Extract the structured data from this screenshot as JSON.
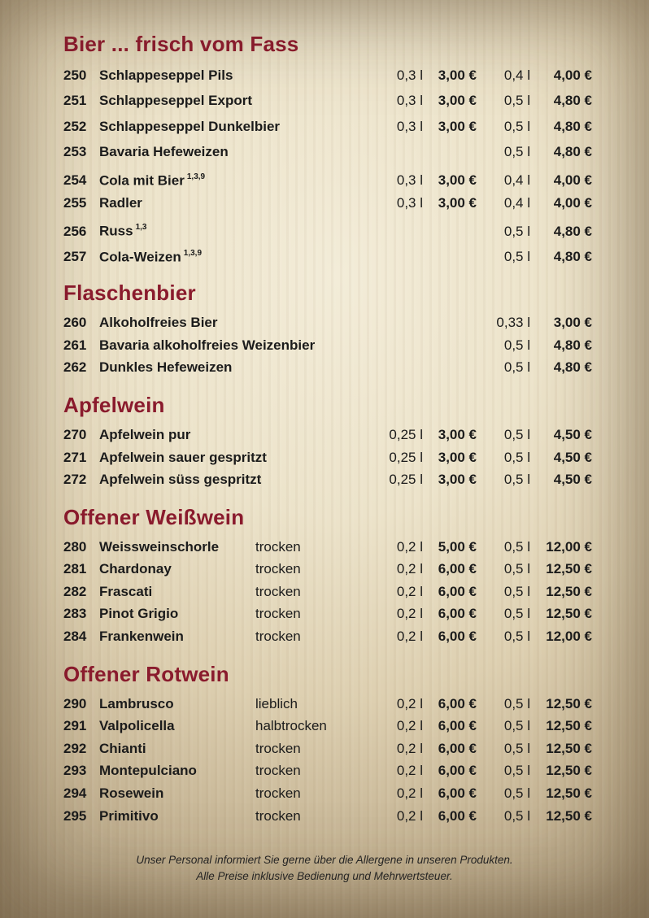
{
  "colors": {
    "heading": "#8a1b2d",
    "text": "#1b1b1b",
    "parchment_light": "#f3ecd8",
    "parchment_dark": "#ac9b7d"
  },
  "menu": {
    "sections": [
      {
        "title": "Bier ... frisch vom Fass",
        "style": "beer",
        "rows": [
          {
            "num": "250",
            "name": "Schlappeseppel Pils",
            "sup": "",
            "attr": "",
            "size1": "0,3 l",
            "price1": "3,00 €",
            "size2": "0,4 l",
            "price2": "4,00 €"
          },
          {
            "num": "251",
            "name": "Schlappeseppel Export",
            "sup": "",
            "attr": "",
            "size1": "0,3 l",
            "price1": "3,00 €",
            "size2": "0,5 l",
            "price2": "4,80 €"
          },
          {
            "num": "252",
            "name": "Schlappeseppel Dunkelbier",
            "sup": "",
            "attr": "",
            "size1": "0,3 l",
            "price1": "3,00 €",
            "size2": "0,5 l",
            "price2": "4,80 €"
          },
          {
            "num": "253",
            "name": "Bavaria Hefeweizen",
            "sup": "",
            "attr": "",
            "size1": "",
            "price1": "",
            "size2": "0,5 l",
            "price2": "4,80 €"
          },
          {
            "num": "254",
            "name": "Cola mit Bier",
            "sup": "1,3,9",
            "attr": "",
            "size1": "0,3 l",
            "price1": "3,00 €",
            "size2": "0,4 l",
            "price2": "4,00 €"
          },
          {
            "num": "255",
            "name": "Radler",
            "sup": "",
            "attr": "",
            "size1": "0,3 l",
            "price1": "3,00 €",
            "size2": "0,4 l",
            "price2": "4,00 €"
          },
          {
            "num": "256",
            "name": "Russ",
            "sup": "1,3",
            "attr": "",
            "size1": "",
            "price1": "",
            "size2": "0,5 l",
            "price2": "4,80 €"
          },
          {
            "num": "257",
            "name": "Cola-Weizen",
            "sup": "1,3,9",
            "attr": "",
            "size1": "",
            "price1": "",
            "size2": "0,5 l",
            "price2": "4,80 €"
          }
        ]
      },
      {
        "title": "Flaschenbier",
        "style": "",
        "rows": [
          {
            "num": "260",
            "name": "Alkoholfreies Bier",
            "sup": "",
            "attr": "",
            "size1": "",
            "price1": "",
            "size2": "0,33 l",
            "price2": "3,00 €"
          },
          {
            "num": "261",
            "name": "Bavaria alkoholfreies Weizenbier",
            "sup": "",
            "attr": "",
            "size1": "",
            "price1": "",
            "size2": "0,5 l",
            "price2": "4,80 €"
          },
          {
            "num": "262",
            "name": "Dunkles Hefeweizen",
            "sup": "",
            "attr": "",
            "size1": "",
            "price1": "",
            "size2": "0,5 l",
            "price2": "4,80 €"
          }
        ]
      },
      {
        "title": "Apfelwein",
        "style": "",
        "rows": [
          {
            "num": "270",
            "name": "Apfelwein pur",
            "sup": "",
            "attr": "",
            "size1": "0,25 l",
            "price1": "3,00 €",
            "size2": "0,5 l",
            "price2": "4,50 €"
          },
          {
            "num": "271",
            "name": "Apfelwein sauer gespritzt",
            "sup": "",
            "attr": "",
            "size1": "0,25 l",
            "price1": "3,00 €",
            "size2": "0,5 l",
            "price2": "4,50 €"
          },
          {
            "num": "272",
            "name": "Apfelwein süss gespritzt",
            "sup": "",
            "attr": "",
            "size1": "0,25 l",
            "price1": "3,00 €",
            "size2": "0,5 l",
            "price2": "4,50 €"
          }
        ]
      },
      {
        "title": "Offener Weißwein",
        "style": "",
        "rows": [
          {
            "num": "280",
            "name": "Weissweinschorle",
            "sup": "",
            "attr": "trocken",
            "size1": "0,2 l",
            "price1": "5,00 €",
            "size2": "0,5 l",
            "price2": "12,00 €"
          },
          {
            "num": "281",
            "name": "Chardonay",
            "sup": "",
            "attr": "trocken",
            "size1": "0,2 l",
            "price1": "6,00 €",
            "size2": "0,5 l",
            "price2": "12,50 €"
          },
          {
            "num": "282",
            "name": "Frascati",
            "sup": "",
            "attr": "trocken",
            "size1": "0,2 l",
            "price1": "6,00 €",
            "size2": "0,5 l",
            "price2": "12,50 €"
          },
          {
            "num": "283",
            "name": "Pinot Grigio",
            "sup": "",
            "attr": "trocken",
            "size1": "0,2 l",
            "price1": "6,00 €",
            "size2": "0,5 l",
            "price2": "12,50 €"
          },
          {
            "num": "284",
            "name": "Frankenwein",
            "sup": "",
            "attr": "trocken",
            "size1": "0,2 l",
            "price1": "6,00 €",
            "size2": "0,5 l",
            "price2": "12,00 €"
          }
        ]
      },
      {
        "title": "Offener Rotwein",
        "style": "",
        "rows": [
          {
            "num": "290",
            "name": "Lambrusco",
            "sup": "",
            "attr": "lieblich",
            "size1": "0,2 l",
            "price1": "6,00 €",
            "size2": "0,5 l",
            "price2": "12,50 €"
          },
          {
            "num": "291",
            "name": "Valpolicella",
            "sup": "",
            "attr": "halbtrocken",
            "size1": "0,2 l",
            "price1": "6,00 €",
            "size2": "0,5 l",
            "price2": "12,50 €"
          },
          {
            "num": "292",
            "name": "Chianti",
            "sup": "",
            "attr": "trocken",
            "size1": "0,2 l",
            "price1": "6,00 €",
            "size2": "0,5 l",
            "price2": "12,50 €"
          },
          {
            "num": "293",
            "name": "Montepulciano",
            "sup": "",
            "attr": "trocken",
            "size1": "0,2 l",
            "price1": "6,00 €",
            "size2": "0,5 l",
            "price2": "12,50 €"
          },
          {
            "num": "294",
            "name": "Rosewein",
            "sup": "",
            "attr": "trocken",
            "size1": "0,2 l",
            "price1": "6,00 €",
            "size2": "0,5 l",
            "price2": "12,50 €"
          },
          {
            "num": "295",
            "name": "Primitivo",
            "sup": "",
            "attr": "trocken",
            "size1": "0,2 l",
            "price1": "6,00 €",
            "size2": "0,5 l",
            "price2": "12,50 €"
          }
        ]
      }
    ]
  },
  "footer": {
    "line1": "Unser Personal informiert Sie gerne über die Allergene in unseren Produkten.",
    "line2": "Alle Preise inklusive Bedienung und Mehrwertsteuer."
  }
}
